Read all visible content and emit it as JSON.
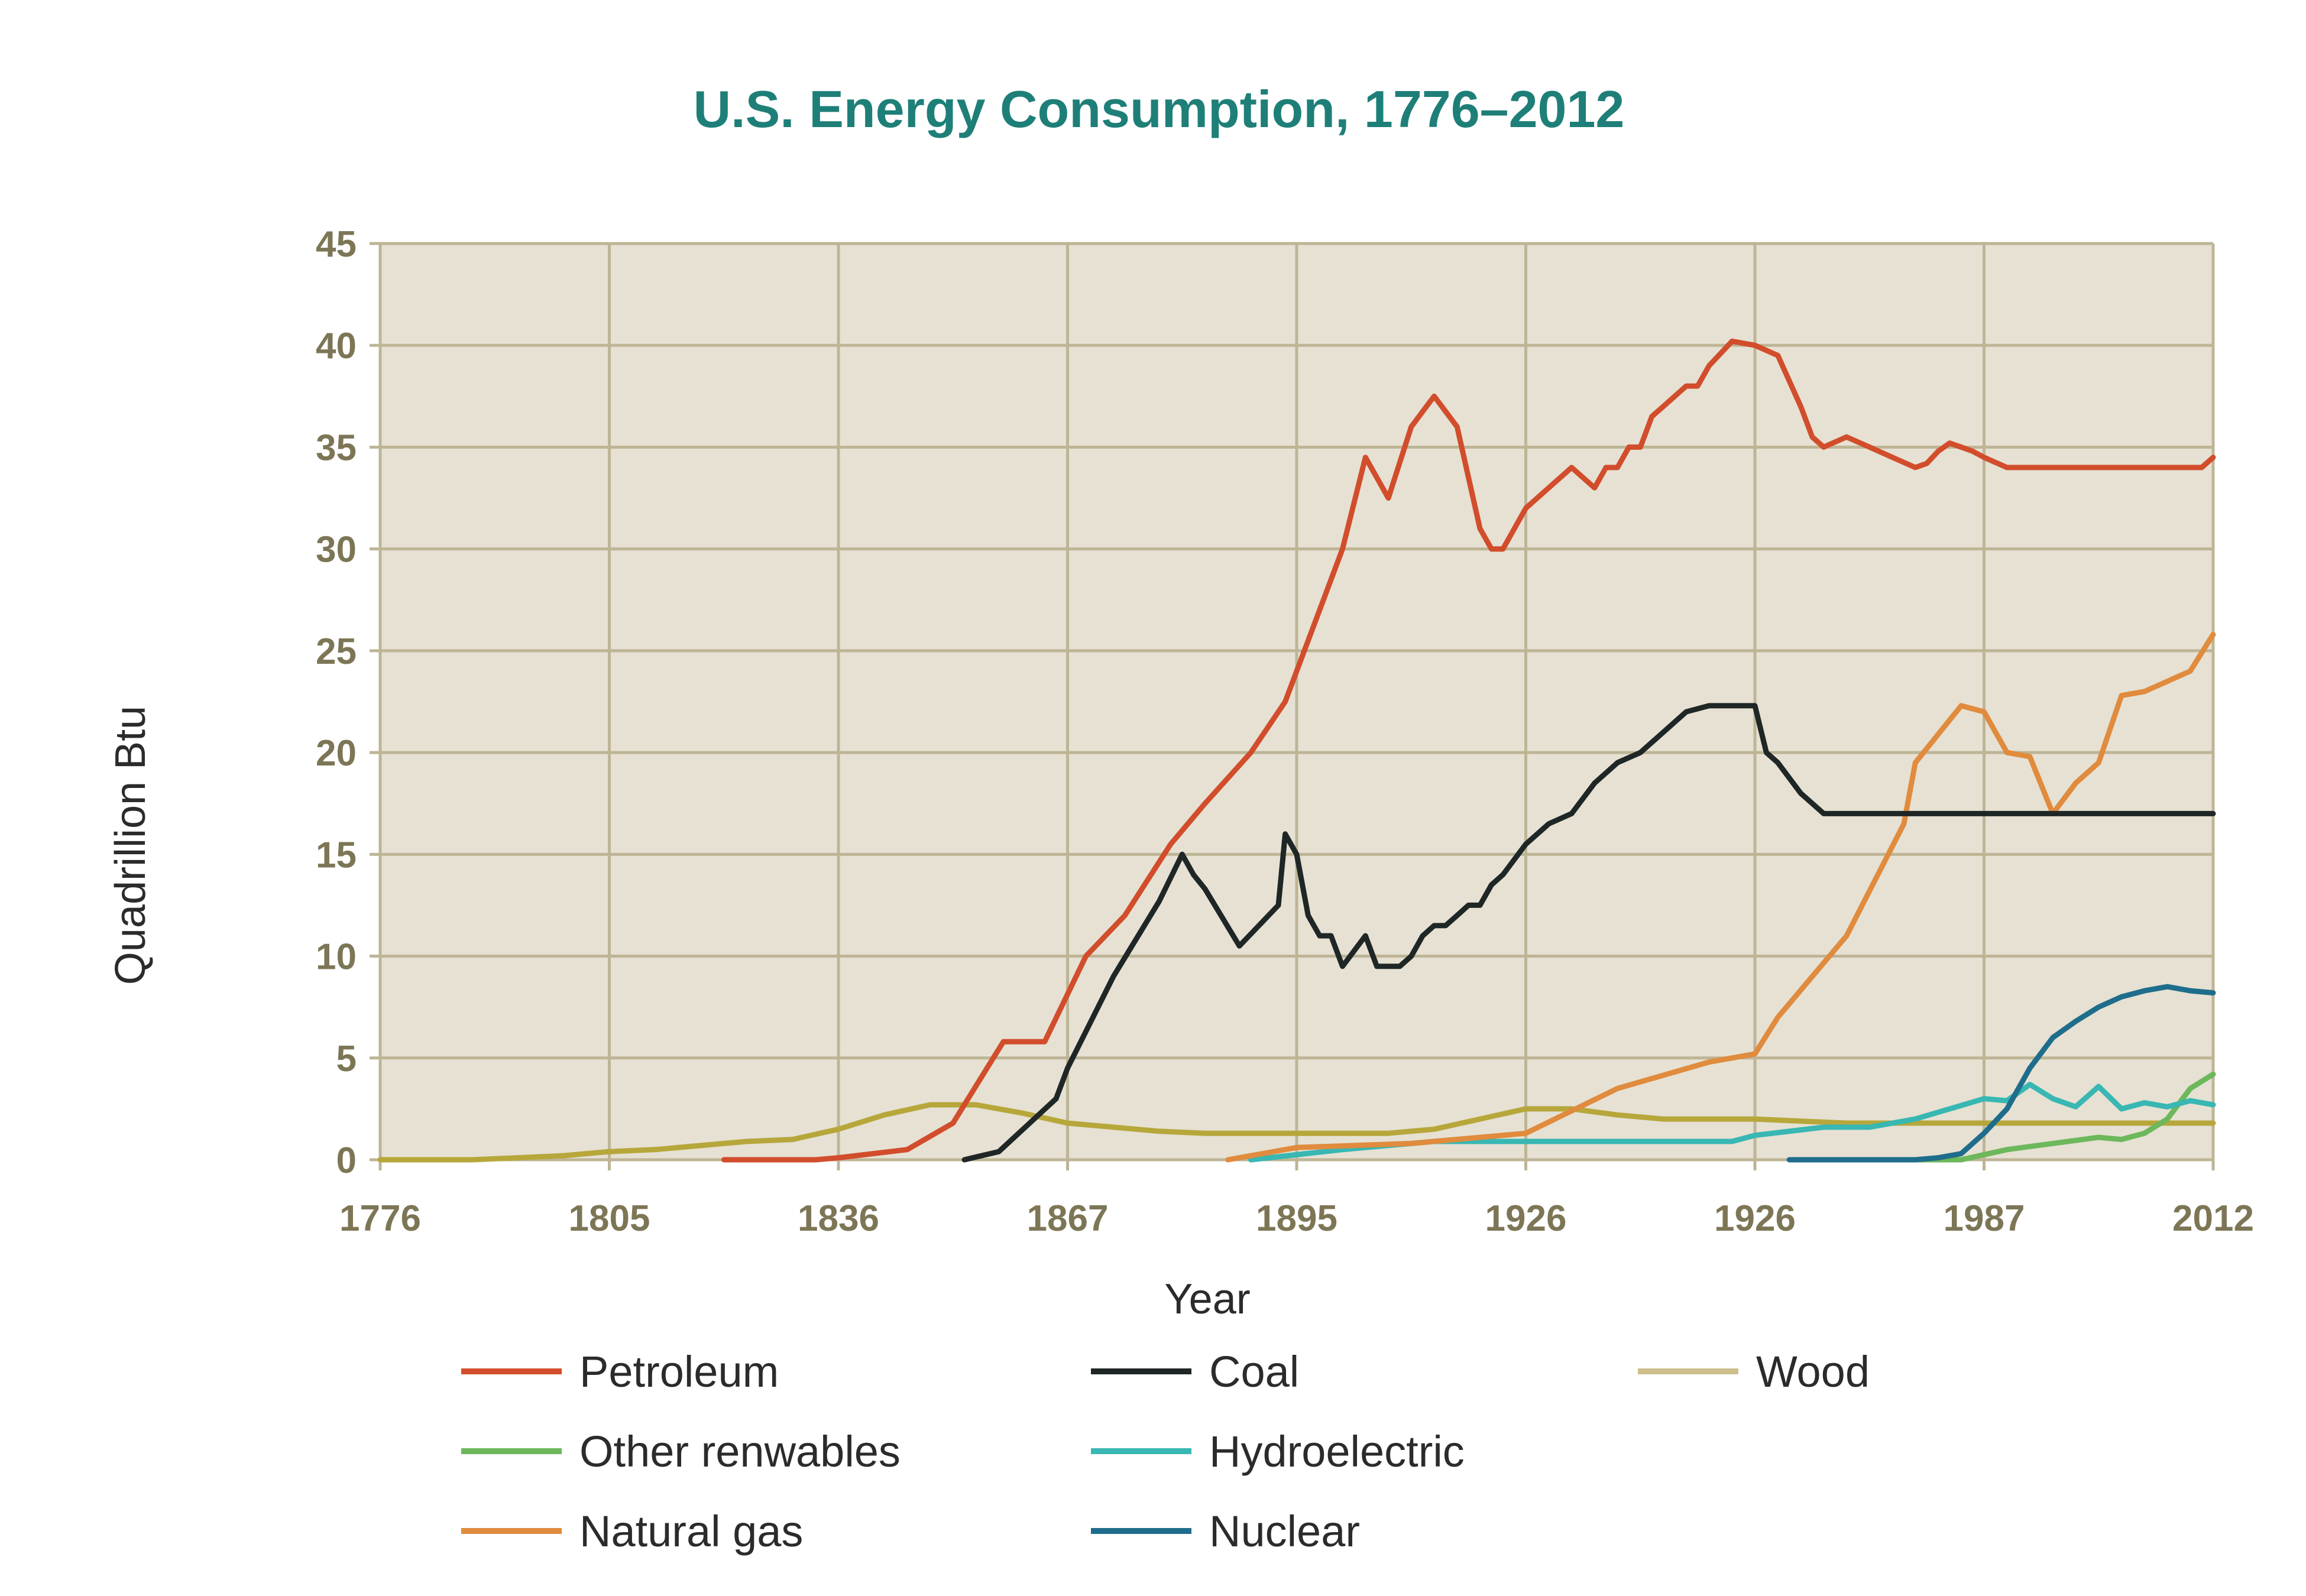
{
  "chart_data": {
    "type": "line",
    "title": "U.S. Energy Consumption, 1776–2012",
    "xlabel": "Year",
    "ylabel": "Quadrillion Btu",
    "ylim": [
      0,
      45
    ],
    "yticks": [
      "0",
      "5",
      "10",
      "15",
      "20",
      "25",
      "30",
      "35",
      "40",
      "45"
    ],
    "xtick_labels": [
      "1776",
      "1805",
      "1836",
      "1867",
      "1895",
      "1926",
      "1926",
      "1987",
      "2012"
    ],
    "grid": true,
    "legend_position": "bottom",
    "colors": {
      "title": "#1e7f78",
      "ticks": "#7d7656",
      "plot_bg": "#e6e1d3",
      "grid": "#bdb595"
    },
    "series": [
      {
        "name": "Petroleum",
        "color": "#d24d2c",
        "x": [
          1.5,
          1.9,
          2.0,
          2.3,
          2.5,
          2.72,
          2.9,
          3.08,
          3.25,
          3.45,
          3.6,
          3.8,
          3.95,
          4.0,
          4.1,
          4.2,
          4.3,
          4.4,
          4.5,
          4.6,
          4.7,
          4.8,
          4.85,
          4.9,
          5.0,
          5.1,
          5.2,
          5.25,
          5.3,
          5.35,
          5.4,
          5.45,
          5.5,
          5.55,
          5.6,
          5.7,
          5.75,
          5.8,
          5.9,
          6.0,
          6.1,
          6.2,
          6.25,
          6.3,
          6.4,
          6.5,
          6.6,
          6.7,
          6.75,
          6.8,
          6.85,
          6.9,
          6.95,
          7.0,
          7.1,
          7.2,
          7.3,
          7.4,
          7.45,
          7.5,
          7.55,
          7.6,
          7.65,
          7.7,
          7.8,
          7.85,
          7.9,
          7.95,
          8.0
        ],
        "y": [
          0,
          0,
          0.1,
          0.5,
          1.8,
          5.8,
          5.8,
          10,
          12,
          15.5,
          17.5,
          20,
          22.5,
          24,
          27,
          30,
          34.5,
          32.5,
          36,
          37.5,
          36,
          31,
          30,
          30,
          32,
          33,
          34,
          33.5,
          33,
          34,
          34,
          35,
          35,
          36.5,
          37,
          38,
          38,
          39,
          40.2,
          40,
          39.5,
          37,
          35.5,
          35,
          35.5,
          35,
          34.5,
          34,
          34.2,
          34.8,
          35.2,
          35,
          34.8,
          34.5,
          34,
          34,
          34,
          34,
          34,
          34,
          34,
          34,
          34,
          34,
          34,
          34,
          34,
          34,
          34.5
        ]
      },
      {
        "name": "Coal",
        "color": "#1f2626",
        "x": [
          2.55,
          2.7,
          2.95,
          3.0,
          3.2,
          3.4,
          3.5,
          3.55,
          3.6,
          3.75,
          3.92,
          3.95,
          4.0,
          4.05,
          4.1,
          4.15,
          4.2,
          4.3,
          4.35,
          4.4,
          4.45,
          4.5,
          4.55,
          4.6,
          4.65,
          4.7,
          4.75,
          4.8,
          4.85,
          4.9,
          5.0,
          5.1,
          5.2,
          5.3,
          5.4,
          5.5,
          5.6,
          5.7,
          5.8,
          5.9,
          5.95,
          6.0,
          6.05,
          6.1,
          6.2,
          6.3,
          6.35,
          6.4,
          6.45,
          6.5,
          6.55,
          6.6,
          6.65,
          6.7,
          6.75,
          6.8,
          6.85,
          6.9,
          6.95,
          7.0,
          7.05,
          7.1,
          7.15,
          7.2,
          7.25,
          7.3,
          7.35,
          7.4,
          7.45,
          7.5,
          7.55,
          7.6,
          7.65,
          7.7,
          7.75,
          7.8,
          7.85,
          7.9,
          7.95,
          8.0
        ],
        "y": [
          0,
          0.4,
          3,
          4.5,
          9,
          12.7,
          15,
          14,
          13.3,
          10.5,
          12.5,
          16,
          15,
          12,
          11,
          11,
          9.5,
          11,
          9.5,
          9.5,
          9.5,
          10,
          11,
          11.5,
          11.5,
          12,
          12.5,
          12.5,
          13.5,
          14,
          15.5,
          16.5,
          17,
          18.5,
          19.5,
          20,
          21,
          22,
          22.3,
          22.3,
          22.3,
          22.3,
          20,
          19.5,
          18,
          17,
          17,
          17,
          17,
          17,
          17,
          17,
          17,
          17,
          17,
          17,
          17,
          17,
          17,
          17,
          17,
          17,
          17,
          17,
          17,
          17,
          17,
          17,
          17,
          17,
          17,
          17,
          17,
          17,
          17,
          17,
          17,
          17,
          17,
          17
        ]
      },
      {
        "name": "Wood",
        "color": "#b7a73b",
        "x": [
          0,
          0.2,
          0.4,
          0.6,
          0.8,
          1.0,
          1.2,
          1.4,
          1.6,
          1.8,
          2.0,
          2.2,
          2.4,
          2.6,
          2.8,
          3.0,
          3.2,
          3.4,
          3.6,
          3.8,
          4.0,
          4.2,
          4.4,
          4.6,
          4.8,
          5.0,
          5.2,
          5.4,
          5.6,
          5.8,
          6.0,
          6.2,
          6.4,
          6.6,
          6.8,
          7.0,
          7.2,
          7.4,
          7.6,
          7.8,
          8.0
        ],
        "y": [
          0,
          0,
          0,
          0.1,
          0.2,
          0.4,
          0.5,
          0.7,
          0.9,
          1.0,
          1.5,
          2.2,
          2.7,
          2.7,
          2.3,
          1.8,
          1.6,
          1.4,
          1.3,
          1.3,
          1.3,
          1.3,
          1.3,
          1.5,
          2.0,
          2.5,
          2.5,
          2.2,
          2.0,
          2.0,
          2.0,
          1.9,
          1.8,
          1.8,
          1.8,
          1.8,
          1.8,
          1.8,
          1.8,
          1.8,
          1.8
        ]
      },
      {
        "name": "Other renwables",
        "color": "#6cb85a",
        "x": [
          6.3,
          6.9,
          7.1,
          7.3,
          7.5,
          7.6,
          7.7,
          7.8,
          7.9,
          8.0
        ],
        "y": [
          0,
          0,
          0.5,
          0.8,
          1.1,
          1.0,
          1.3,
          2.0,
          3.5,
          4.2
        ]
      },
      {
        "name": "Hydroelectric",
        "color": "#38b7b3",
        "x": [
          3.8,
          4.2,
          4.6,
          5.0,
          5.5,
          5.9,
          6.0,
          6.3,
          6.5,
          6.7,
          7.0,
          7.1,
          7.2,
          7.3,
          7.4,
          7.5,
          7.6,
          7.7,
          7.8,
          7.9,
          8.0
        ],
        "y": [
          0,
          0.5,
          0.9,
          0.9,
          0.9,
          0.9,
          1.2,
          1.6,
          1.6,
          2.0,
          3.0,
          2.9,
          3.7,
          3.0,
          2.6,
          3.6,
          2.5,
          2.8,
          2.6,
          2.9,
          2.7
        ]
      },
      {
        "name": "Natural gas",
        "color": "#e08b3d",
        "x": [
          3.7,
          4.0,
          4.5,
          5.0,
          5.4,
          5.8,
          6.0,
          6.1,
          6.4,
          6.65,
          6.7,
          6.9,
          7.0,
          7.1,
          7.2,
          7.3,
          7.4,
          7.5,
          7.6,
          7.7,
          7.8,
          7.9,
          8.0
        ],
        "y": [
          0,
          0.6,
          0.8,
          1.3,
          3.5,
          4.8,
          5.2,
          7.0,
          11.0,
          16.5,
          19.5,
          22.3,
          22.0,
          20.0,
          19.8,
          17.0,
          18.5,
          19.5,
          22.8,
          23.0,
          23.5,
          24.0,
          25.8
        ]
      },
      {
        "name": "Nuclear",
        "color": "#1f6d8c",
        "x": [
          6.15,
          6.7,
          6.8,
          6.9,
          7.0,
          7.1,
          7.2,
          7.3,
          7.4,
          7.5,
          7.6,
          7.7,
          7.8,
          7.9,
          8.0
        ],
        "y": [
          0,
          0,
          0.1,
          0.3,
          1.3,
          2.5,
          4.5,
          6.0,
          6.8,
          7.5,
          8.0,
          8.3,
          8.5,
          8.3,
          8.2
        ]
      }
    ]
  }
}
